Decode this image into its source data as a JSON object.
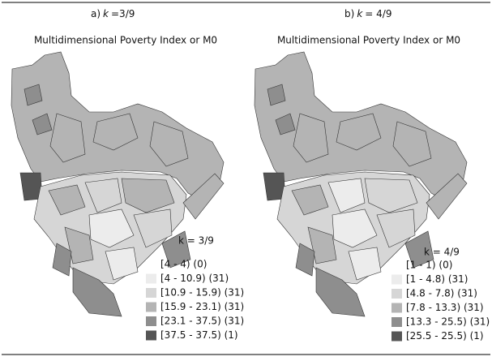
{
  "panels": [
    {
      "title": [
        "a)",
        "k",
        "=3/9"
      ],
      "subtitle": "Multidimensional Poverty Index or M0",
      "legend": {
        "title": "k = 3/9",
        "items": [
          {
            "label": "[4 - 4) (0)",
            "color": "#ffffff"
          },
          {
            "label": "[4 - 10.9) (31)",
            "color": "#ececec"
          },
          {
            "label": "[10.9 - 15.9) (31)",
            "color": "#d6d6d6"
          },
          {
            "label": "[15.9 - 23.1) (31)",
            "color": "#b4b4b4"
          },
          {
            "label": "[23.1 - 37.5) (31)",
            "color": "#8e8e8e"
          },
          {
            "label": "[37.5 - 37.5) (1)",
            "color": "#555555"
          }
        ]
      }
    },
    {
      "title": [
        "b)",
        "k",
        "= 4/9"
      ],
      "subtitle": "Multidimensional Poverty Index or M0",
      "legend": {
        "title": "k = 4/9",
        "items": [
          {
            "label": "[1 - 1) (0)",
            "color": "#ffffff"
          },
          {
            "label": "[1 - 4.8) (31)",
            "color": "#ececec"
          },
          {
            "label": "[4.8 - 7.8) (31)",
            "color": "#d6d6d6"
          },
          {
            "label": "[7.8 - 13.3) (31)",
            "color": "#b4b4b4"
          },
          {
            "label": "[13.3 - 25.5) (31)",
            "color": "#8e8e8e"
          },
          {
            "label": "[25.5 - 25.5) (1)",
            "color": "#555555"
          }
        ]
      }
    }
  ]
}
